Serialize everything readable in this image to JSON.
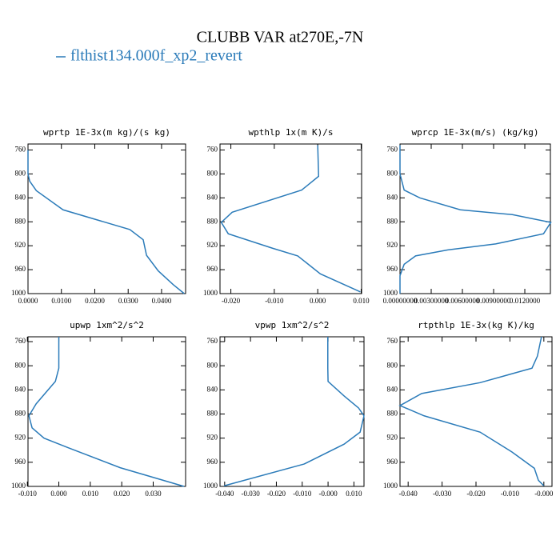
{
  "title": "CLUBB VAR at270E,-7N",
  "legend": {
    "name": "flthist134.000f_xp2_revert",
    "color": "#2b7bb9"
  },
  "chart_data": [
    {
      "type": "line",
      "title": "wprtp  1E-3x(m kg)/(s kg)",
      "color": "#2b7bb9",
      "x": [
        0,
        0,
        0.0005,
        0.0025,
        0.0105,
        0.0305,
        0.0345,
        0.0355,
        0.039,
        0.0435,
        0.0468
      ],
      "y": [
        760,
        800,
        812,
        828,
        860,
        893,
        910,
        936,
        962,
        985,
        1000
      ],
      "xlim": [
        0,
        0.0472
      ],
      "ylim": [
        750,
        1000
      ],
      "xticks": [
        {
          "value": 0,
          "label": "0.0000"
        },
        {
          "value": 0.01,
          "label": "0.0100"
        },
        {
          "value": 0.02,
          "label": "0.0200"
        },
        {
          "value": 0.03,
          "label": "0.0300"
        },
        {
          "value": 0.04,
          "label": "0.0400"
        }
      ],
      "yticks": [
        760,
        800,
        840,
        880,
        920,
        960,
        1000
      ]
    },
    {
      "type": "line",
      "title": "wpthlp  1x(m K)/s",
      "color": "#2b7bb9",
      "x": [
        0,
        0.0002,
        -0.0037,
        -0.0197,
        -0.0222,
        -0.0206,
        -0.0105,
        -0.0046,
        0.0006,
        0.0098
      ],
      "y": [
        752,
        804,
        827,
        864,
        881,
        900,
        924,
        937,
        967,
        997
      ],
      "xlim": [
        -0.0225,
        0.0101
      ],
      "ylim": [
        750,
        1000
      ],
      "xticks": [
        {
          "value": -0.02,
          "label": "-0.020"
        },
        {
          "value": -0.01,
          "label": "-0.010"
        },
        {
          "value": 0,
          "label": "0.000"
        },
        {
          "value": 0.01,
          "label": "0.010"
        }
      ],
      "yticks": [
        760,
        800,
        840,
        880,
        920,
        960,
        1000
      ]
    },
    {
      "type": "line",
      "title": "wprcp  1E-3x(m/s) (kg/kg)",
      "color": "#2b7bb9",
      "x": [
        0,
        0,
        0.0004,
        0.0019,
        0.0058,
        0.0108,
        0.0145,
        0.0138,
        0.0092,
        0.0046,
        0.0015,
        0.0004,
        0,
        0
      ],
      "y": [
        752,
        800,
        827,
        840,
        860,
        868,
        881,
        900,
        917,
        927,
        937,
        951,
        970,
        1000
      ],
      "xlim": [
        0,
        0.01446
      ],
      "ylim": [
        750,
        1000
      ],
      "xticks": [
        {
          "value": 0,
          "label": "0.00000000"
        },
        {
          "value": 0.003,
          "label": "0.00300000"
        },
        {
          "value": 0.006,
          "label": "0.00600000"
        },
        {
          "value": 0.009,
          "label": "0.00900000"
        },
        {
          "value": 0.012,
          "label": "0.0120000"
        }
      ],
      "yticks": [
        760,
        800,
        840,
        880,
        920,
        960,
        1000
      ]
    },
    {
      "type": "line",
      "title": "upwp  1xm^2/s^2",
      "color": "#2b7bb9",
      "x": [
        0,
        0,
        -0.0011,
        -0.0072,
        -0.0095,
        -0.0085,
        -0.0047,
        0.003,
        0.0195,
        0.0398
      ],
      "y": [
        752,
        804,
        826,
        863,
        883,
        903,
        920,
        936,
        969,
        1000
      ],
      "xlim": [
        -0.0098,
        0.0403
      ],
      "ylim": [
        752,
        1000
      ],
      "xticks": [
        {
          "value": -0.01,
          "label": "-0.010"
        },
        {
          "value": 0,
          "label": "0.000"
        },
        {
          "value": 0.01,
          "label": "0.010"
        },
        {
          "value": 0.02,
          "label": "0.020"
        },
        {
          "value": 0.03,
          "label": "0.030"
        }
      ],
      "yticks": [
        760,
        800,
        840,
        880,
        920,
        960,
        1000
      ]
    },
    {
      "type": "line",
      "title": "vpwp  1xm^2/s^2",
      "color": "#2b7bb9",
      "x": [
        -0.0001,
        -0.0001,
        0,
        0.0062,
        0.0118,
        0.0139,
        0.0124,
        0.0062,
        -0.0093,
        -0.0402
      ],
      "y": [
        752,
        804,
        826,
        850,
        870,
        883,
        910,
        930,
        963,
        999
      ],
      "xlim": [
        -0.0418,
        0.0139
      ],
      "ylim": [
        752,
        1000
      ],
      "xticks": [
        {
          "value": -0.04,
          "label": "-0.040"
        },
        {
          "value": -0.03,
          "label": "-0.030"
        },
        {
          "value": -0.02,
          "label": "-0.020"
        },
        {
          "value": -0.01,
          "label": "-0.010"
        },
        {
          "value": 0,
          "label": "-0.000"
        },
        {
          "value": 0.01,
          "label": "0.010"
        }
      ],
      "yticks": [
        760,
        800,
        840,
        880,
        920,
        960,
        1000
      ]
    },
    {
      "type": "line",
      "title": "rtpthlp  1E-3x(kg K)/kg",
      "color": "#2b7bb9",
      "x": [
        -0.0007,
        -0.0019,
        -0.0035,
        -0.0188,
        -0.036,
        -0.0424,
        -0.0353,
        -0.0188,
        -0.0094,
        -0.0028,
        -0.0016,
        0
      ],
      "y": [
        752,
        784,
        804,
        828,
        846,
        866,
        883,
        910,
        943,
        970,
        990,
        999
      ],
      "xlim": [
        -0.0424,
        0.0024
      ],
      "ylim": [
        752,
        1000
      ],
      "xticks": [
        {
          "value": -0.04,
          "label": "-0.040"
        },
        {
          "value": -0.03,
          "label": "-0.030"
        },
        {
          "value": -0.02,
          "label": "-0.020"
        },
        {
          "value": -0.01,
          "label": "-0.010"
        },
        {
          "value": 0,
          "label": "-0.000"
        }
      ],
      "yticks": [
        760,
        800,
        840,
        880,
        920,
        960,
        1000
      ]
    }
  ]
}
